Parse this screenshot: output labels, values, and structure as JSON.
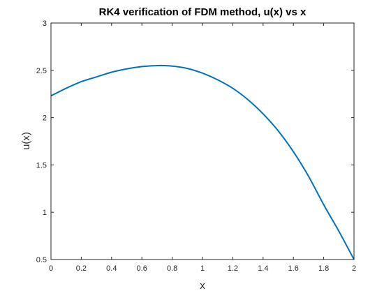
{
  "chart_data": {
    "type": "line",
    "title": "RK4 verification of FDM method, u(x) vs x",
    "xlabel": "x",
    "ylabel": "u(x)",
    "xlim": [
      0,
      2
    ],
    "ylim": [
      0.5,
      3
    ],
    "xticks": [
      "0",
      "0.2",
      "0.4",
      "0.6",
      "0.8",
      "1",
      "1.2",
      "1.4",
      "1.6",
      "1.8",
      "2"
    ],
    "yticks": [
      "0.5",
      "1",
      "1.5",
      "2",
      "2.5",
      "3"
    ],
    "grid": false,
    "box": true,
    "line_color": "#0072BD",
    "series": [
      {
        "x": [
          0,
          0.1,
          0.2,
          0.3,
          0.4,
          0.5,
          0.6,
          0.7,
          0.75,
          0.8,
          0.9,
          1.0,
          1.1,
          1.2,
          1.3,
          1.4,
          1.5,
          1.6,
          1.7,
          1.8,
          1.9,
          2.0
        ],
        "y": [
          2.23,
          2.31,
          2.38,
          2.43,
          2.48,
          2.515,
          2.54,
          2.55,
          2.55,
          2.545,
          2.52,
          2.47,
          2.4,
          2.31,
          2.19,
          2.04,
          1.86,
          1.64,
          1.38,
          1.08,
          0.8,
          0.5
        ]
      }
    ]
  }
}
